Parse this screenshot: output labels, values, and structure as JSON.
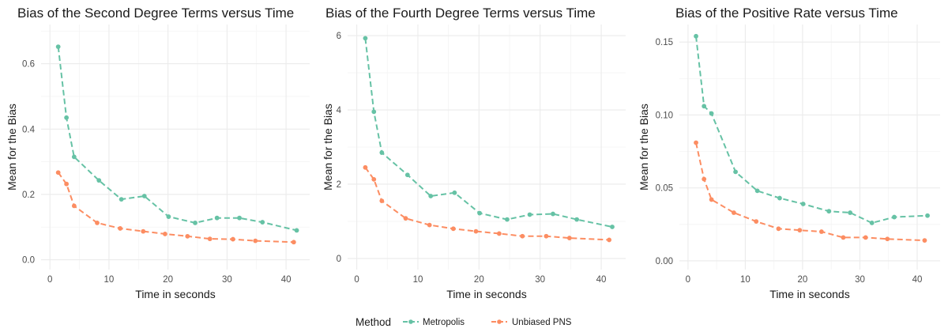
{
  "colors": {
    "Metropolis": "#66c2a5",
    "Unbiased PNS": "#fc8d62",
    "grid_major": "#ebebeb",
    "grid_minor": "#f4f4f4"
  },
  "legend": {
    "title": "Method",
    "items": [
      {
        "label": "Metropolis",
        "color": "#66c2a5"
      },
      {
        "label": "Unbiased PNS",
        "color": "#fc8d62"
      }
    ]
  },
  "chart_data": [
    {
      "type": "line",
      "title": "Bias of the Second Degree Terms versus Time",
      "xlabel": "Time in seconds",
      "ylabel": "Mean for the Bias",
      "xlim": [
        -1.5,
        44
      ],
      "ylim": [
        -0.03,
        0.72
      ],
      "xticks": [
        0,
        10,
        20,
        30,
        40
      ],
      "xtick_labels": [
        "0",
        "10",
        "20",
        "30",
        "40"
      ],
      "yticks": [
        0.0,
        0.2,
        0.4,
        0.6
      ],
      "ytick_labels": [
        "0.0",
        "0.2",
        "0.4",
        "0.6"
      ],
      "grid": true,
      "line_style": "dashed",
      "markers": true,
      "series": [
        {
          "name": "Metropolis",
          "color": "#66c2a5",
          "x": [
            1.4,
            2.8,
            4.1,
            8.3,
            12.1,
            16.0,
            20.1,
            24.6,
            28.3,
            32.1,
            36.0,
            41.8
          ],
          "y": [
            0.652,
            0.435,
            0.315,
            0.243,
            0.185,
            0.195,
            0.132,
            0.113,
            0.128,
            0.128,
            0.115,
            0.09
          ]
        },
        {
          "name": "Unbiased PNS",
          "color": "#fc8d62",
          "x": [
            1.4,
            2.8,
            4.1,
            8.0,
            11.9,
            15.8,
            19.5,
            23.3,
            27.1,
            31.0,
            34.8,
            41.3
          ],
          "y": [
            0.267,
            0.232,
            0.165,
            0.113,
            0.096,
            0.087,
            0.079,
            0.072,
            0.064,
            0.063,
            0.058,
            0.054
          ]
        }
      ]
    },
    {
      "type": "line",
      "title": "Bias of the Fourth Degree Terms versus Time",
      "xlabel": "Time in seconds",
      "ylabel": "Mean for the Bias",
      "xlim": [
        -1.5,
        44
      ],
      "ylim": [
        -0.3,
        6.3
      ],
      "xticks": [
        0,
        10,
        20,
        30,
        40
      ],
      "xtick_labels": [
        "0",
        "10",
        "20",
        "30",
        "40"
      ],
      "yticks": [
        0,
        2,
        4,
        6
      ],
      "ytick_labels": [
        "0",
        "2",
        "4",
        "6"
      ],
      "grid": true,
      "line_style": "dashed",
      "markers": true,
      "series": [
        {
          "name": "Metropolis",
          "color": "#66c2a5",
          "x": [
            1.4,
            2.8,
            4.1,
            8.3,
            12.1,
            16.0,
            20.1,
            24.6,
            28.3,
            32.1,
            36.0,
            41.8
          ],
          "y": [
            5.93,
            3.95,
            2.85,
            2.25,
            1.68,
            1.77,
            1.22,
            1.05,
            1.18,
            1.2,
            1.05,
            0.85
          ]
        },
        {
          "name": "Unbiased PNS",
          "color": "#fc8d62",
          "x": [
            1.4,
            2.8,
            4.1,
            8.0,
            11.9,
            15.8,
            19.5,
            23.3,
            27.1,
            31.0,
            34.8,
            41.3
          ],
          "y": [
            2.45,
            2.13,
            1.55,
            1.08,
            0.9,
            0.8,
            0.73,
            0.67,
            0.6,
            0.6,
            0.55,
            0.5
          ]
        }
      ]
    },
    {
      "type": "line",
      "title": "Bias of the Positive Rate versus Time",
      "xlabel": "Time in seconds",
      "ylabel": "Mean for the Bias",
      "xlim": [
        -1.5,
        44
      ],
      "ylim": [
        -0.006,
        0.162
      ],
      "xticks": [
        0,
        10,
        20,
        30,
        40
      ],
      "xtick_labels": [
        "0",
        "10",
        "20",
        "30",
        "40"
      ],
      "yticks": [
        0.0,
        0.05,
        0.1,
        0.15
      ],
      "ytick_labels": [
        "0.00",
        "0.05",
        "0.10",
        "0.15"
      ],
      "grid": true,
      "line_style": "dashed",
      "markers": true,
      "series": [
        {
          "name": "Metropolis",
          "color": "#66c2a5",
          "x": [
            1.4,
            2.8,
            4.1,
            8.3,
            12.1,
            16.0,
            20.1,
            24.6,
            28.3,
            32.1,
            36.0,
            41.8
          ],
          "y": [
            0.154,
            0.106,
            0.101,
            0.061,
            0.048,
            0.043,
            0.039,
            0.034,
            0.033,
            0.026,
            0.03,
            0.031
          ]
        },
        {
          "name": "Unbiased PNS",
          "color": "#fc8d62",
          "x": [
            1.4,
            2.8,
            4.1,
            8.0,
            11.9,
            15.8,
            19.5,
            23.3,
            27.1,
            31.0,
            34.8,
            41.3
          ],
          "y": [
            0.081,
            0.056,
            0.042,
            0.033,
            0.027,
            0.022,
            0.021,
            0.02,
            0.016,
            0.016,
            0.015,
            0.014
          ]
        }
      ]
    }
  ]
}
